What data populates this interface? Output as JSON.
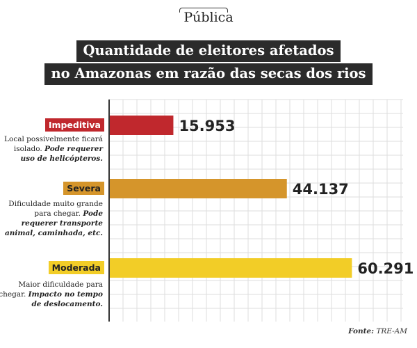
{
  "logo": {
    "text": "Pública"
  },
  "title": {
    "line1": "Quantidade de eleitores afetados",
    "line2": "no Amazonas em razão das secas dos rios"
  },
  "source": {
    "label": "Fonte:",
    "value": "TRE-AM"
  },
  "colors": {
    "impeditiva": "#c0282d",
    "severa": "#d5952b",
    "moderada": "#f2cd27",
    "grid": "#dddddd",
    "axis": "#333333"
  },
  "chart_data": {
    "type": "bar",
    "orientation": "horizontal",
    "categories": [
      "Impeditiva",
      "Severa",
      "Moderada"
    ],
    "values": [
      15953,
      44137,
      60291
    ],
    "value_labels": [
      "15.953",
      "44.137",
      "60.291"
    ],
    "descriptions": [
      {
        "plain": "Local possivelmente ficará isolado. ",
        "emphasis": "Pode requerer uso de helicópteros."
      },
      {
        "plain": "Dificuldade muito grande para chegar. ",
        "emphasis": "Pode requerer transporte animal, caminhada, etc."
      },
      {
        "plain": "Maior dificuldade para chegar. ",
        "emphasis": "Impacto no tempo de deslocamento."
      }
    ],
    "title": "Quantidade de eleitores afetados no Amazonas em razão das secas dos rios",
    "xlim": [
      0,
      73000
    ],
    "grid": true,
    "legend": "none"
  }
}
